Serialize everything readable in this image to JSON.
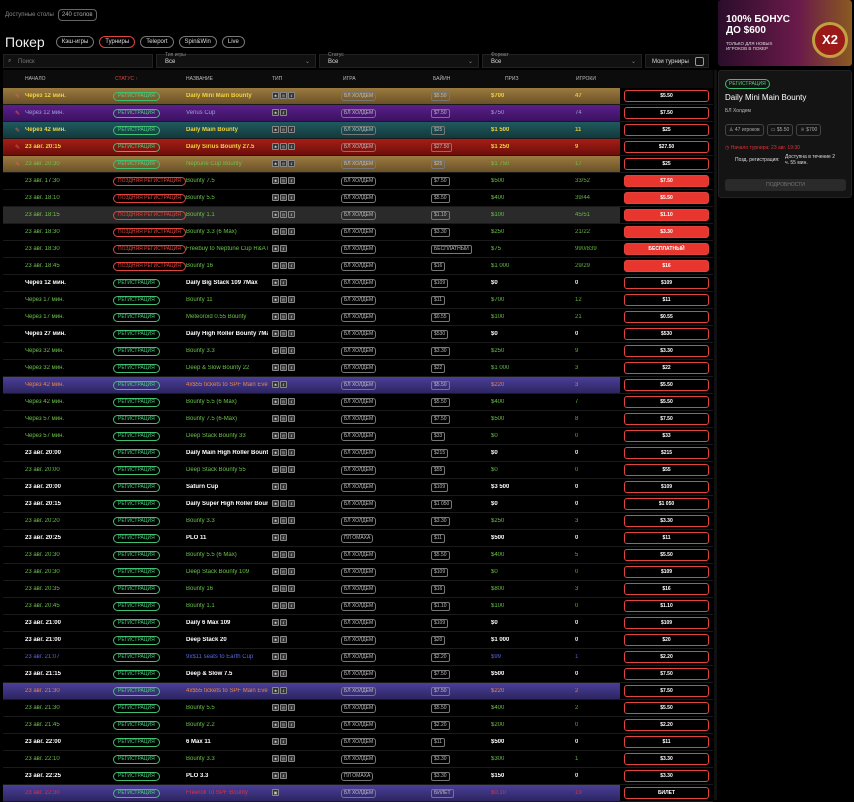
{
  "top": {
    "label": "Доступные столы",
    "count": "240 столов"
  },
  "header": {
    "title": "Покер",
    "tabs": [
      "Кэш-игры",
      "Турниры",
      "Teleport",
      "Spin&Win",
      "Live"
    ],
    "active_tab": 1
  },
  "filters": {
    "search_placeholder": "Поиск",
    "game_type": {
      "label": "Тип игры",
      "value": "Все"
    },
    "status": {
      "label": "Статус",
      "value": "Все"
    },
    "format": {
      "label": "Формат",
      "value": "Все"
    },
    "my_tournaments": "Мои турниры"
  },
  "columns": [
    "НАЧАЛО",
    "СТАТУС ↑",
    "НАЗВАНИЕ",
    "ТИП",
    "ИГРА",
    "БАЙИН",
    "ПРИЗ",
    "ИГРОКИ"
  ],
  "status_labels": {
    "reg": "РЕГИСТРАЦИЯ",
    "late": "ПОЗДНЯЯ РЕГИСТРАЦИЯ"
  },
  "colors": {
    "accent": "#e0443c",
    "registration": "#3ec070"
  },
  "rows": [
    [
      "Через 12 мин.",
      "reg",
      "Daily Mini Main Bounty",
      3,
      "БЛ ХОЛДЕМ",
      "$5.50",
      "$700",
      "47",
      "$5.50",
      "gold",
      "y"
    ],
    [
      "Через 12 мин.",
      "reg",
      "Venus Cup",
      2,
      "БЛ ХОЛДЕМ",
      "$7.50",
      "$750",
      "74",
      "$7.50",
      "purple",
      "v"
    ],
    [
      "Через 42 мин.",
      "reg",
      "Daily Main Bounty",
      3,
      "БЛ ХОЛДЕМ",
      "$25",
      "$1 500",
      "11",
      "$25",
      "teal",
      "y"
    ],
    [
      "23 авг. 20:15",
      "reg",
      "Daily Sirius Bounty 27.5",
      3,
      "БЛ ХОЛДЕМ",
      "$27.50",
      "$1 250",
      "9",
      "$27.50",
      "red",
      "y"
    ],
    [
      "23 авг. 20:30",
      "reg",
      "Neptune Cup Bounty",
      3,
      "БЛ ХОЛДЕМ",
      "$25",
      "$1 750",
      "17",
      "$25",
      "gold",
      "g"
    ],
    [
      "23 авг. 17:30",
      "late",
      "Bounty 7.5",
      3,
      "БЛ ХОЛДЕМ",
      "$7.50",
      "$500",
      "33/52",
      "$7.50",
      "",
      "g"
    ],
    [
      "23 авг. 18:10",
      "late",
      "Bounty 5.5",
      3,
      "БЛ ХОЛДЕМ",
      "$5.50",
      "$400",
      "39/44",
      "$5.50",
      "",
      "g"
    ],
    [
      "23 авг. 18:15",
      "late",
      "Bounty 1.1",
      3,
      "БЛ ХОЛДЕМ",
      "$1.10",
      "$100",
      "45/51",
      "$1.10",
      "grey",
      "g"
    ],
    [
      "23 авг. 18:30",
      "late",
      "Bounty 3.3 (6 Max)",
      3,
      "БЛ ХОЛДЕМ",
      "$3.30",
      "$250",
      "21/22",
      "$3.30",
      "",
      "g"
    ],
    [
      "23 авг. 18:30",
      "late",
      "Freebuy to Neptune Cup R&A I",
      2,
      "БЛ ХОЛДЕМ",
      "БЕСПЛАТНЫЙ",
      "$75",
      "990/839",
      "БЕСПЛАТНЫЙ",
      "",
      "g"
    ],
    [
      "23 авг. 18:45",
      "late",
      "Bounty 16",
      3,
      "БЛ ХОЛДЕМ",
      "$16",
      "$1 000",
      "29/29",
      "$16",
      "",
      "g"
    ],
    [
      "Через 12 мин.",
      "reg",
      "Daily Big Stack 109 7Max",
      2,
      "БЛ ХОЛДЕМ",
      "$109",
      "$0",
      "0",
      "$109",
      "",
      "w"
    ],
    [
      "Через 17 мин.",
      "reg",
      "Bounty 11",
      3,
      "БЛ ХОЛДЕМ",
      "$11",
      "$700",
      "12",
      "$11",
      "",
      "g"
    ],
    [
      "Через 17 мин.",
      "reg",
      "Meteoroid 0.55 Bounty",
      3,
      "БЛ ХОЛДЕМ",
      "$0.55",
      "$100",
      "21",
      "$0.55",
      "",
      "g"
    ],
    [
      "Через 27 мин.",
      "reg",
      "Daily High Roller Bounty 7Max",
      3,
      "БЛ ХОЛДЕМ",
      "$530",
      "$0",
      "0",
      "$530",
      "",
      "w"
    ],
    [
      "Через 32 мин.",
      "reg",
      "Bounty 3.3",
      3,
      "БЛ ХОЛДЕМ",
      "$3.30",
      "$250",
      "9",
      "$3.30",
      "",
      "g"
    ],
    [
      "Через 32 мин.",
      "reg",
      "Deep & Slow Bounty 22",
      3,
      "БЛ ХОЛДЕМ",
      "$22",
      "$1 000",
      "3",
      "$22",
      "",
      "g"
    ],
    [
      "Через 42 мин.",
      "reg",
      "4x$55 tickets to SPF Main Eve",
      2,
      "БЛ ХОЛДЕМ",
      "$5.50",
      "$220",
      "3",
      "$5.50",
      "violet",
      "o"
    ],
    [
      "Через 42 мин.",
      "reg",
      "Bounty 5.5 (6 Max)",
      3,
      "БЛ ХОЛДЕМ",
      "$5.50",
      "$400",
      "7",
      "$5.50",
      "",
      "g"
    ],
    [
      "Через 57 мин.",
      "reg",
      "Bounty 7.5 (6-Max)",
      3,
      "БЛ ХОЛДЕМ",
      "$7.50",
      "$500",
      "8",
      "$7.50",
      "",
      "g"
    ],
    [
      "Через 57 мин.",
      "reg",
      "Deep Stack Bounty 33",
      3,
      "БЛ ХОЛДЕМ",
      "$33",
      "$0",
      "0",
      "$33",
      "",
      "g"
    ],
    [
      "23 авг. 20:00",
      "reg",
      "Daily Main High Roller Bounty",
      3,
      "БЛ ХОЛДЕМ",
      "$215",
      "$0",
      "0",
      "$215",
      "",
      "w"
    ],
    [
      "23 авг. 20:00",
      "reg",
      "Deep Stack Bounty 55",
      3,
      "БЛ ХОЛДЕМ",
      "$55",
      "$0",
      "0",
      "$55",
      "",
      "g"
    ],
    [
      "23 авг. 20:00",
      "reg",
      "Saturn Cup",
      2,
      "БЛ ХОЛДЕМ",
      "$109",
      "$3 500",
      "0",
      "$109",
      "",
      "w"
    ],
    [
      "23 авг. 20:15",
      "reg",
      "Daily Super High Roller Bounty",
      3,
      "БЛ ХОЛДЕМ",
      "$1 050",
      "$0",
      "0",
      "$1 050",
      "",
      "w"
    ],
    [
      "23 авг. 20:20",
      "reg",
      "Bounty 3.3",
      3,
      "БЛ ХОЛДЕМ",
      "$3.30",
      "$250",
      "3",
      "$3.30",
      "",
      "g"
    ],
    [
      "23 авг. 20:25",
      "reg",
      "PLO 11",
      2,
      "ПЛ ОМАХА",
      "$11",
      "$500",
      "0",
      "$11",
      "",
      "w"
    ],
    [
      "23 авг. 20:30",
      "reg",
      "Bounty 5.5 (6 Max)",
      3,
      "БЛ ХОЛДЕМ",
      "$5.50",
      "$400",
      "5",
      "$5.50",
      "",
      "g"
    ],
    [
      "23 авг. 20:30",
      "reg",
      "Deep Stack Bounty 109",
      3,
      "БЛ ХОЛДЕМ",
      "$109",
      "$0",
      "0",
      "$109",
      "",
      "g"
    ],
    [
      "23 авг. 20:35",
      "reg",
      "Bounty 16",
      3,
      "БЛ ХОЛДЕМ",
      "$16",
      "$800",
      "3",
      "$16",
      "",
      "g"
    ],
    [
      "23 авг. 20:45",
      "reg",
      "Bounty 1.1",
      3,
      "БЛ ХОЛДЕМ",
      "$1.10",
      "$100",
      "0",
      "$1.10",
      "",
      "g"
    ],
    [
      "23 авг. 21:00",
      "reg",
      "Daily 6 Max 109",
      2,
      "БЛ ХОЛДЕМ",
      "$109",
      "$0",
      "0",
      "$109",
      "",
      "w"
    ],
    [
      "23 авг. 21:00",
      "reg",
      "Deep Stack 20",
      2,
      "БЛ ХОЛДЕМ",
      "$20",
      "$1 000",
      "0",
      "$20",
      "",
      "w"
    ],
    [
      "23 авг. 21:07",
      "reg",
      "9x$11 seats to Earth Cup",
      2,
      "БЛ ХОЛДЕМ",
      "$2.20",
      "$99",
      "1",
      "$2.20",
      "",
      "b"
    ],
    [
      "23 авг. 21:15",
      "reg",
      "Deep & Slow 7.5",
      2,
      "БЛ ХОЛДЕМ",
      "$7.50",
      "$500",
      "0",
      "$7.50",
      "",
      "w"
    ],
    [
      "23 авг. 21:30",
      "reg",
      "4x$55 tickets to SPF Main Eve",
      2,
      "БЛ ХОЛДЕМ",
      "$7.50",
      "$220",
      "2",
      "$7.50",
      "violet",
      "o"
    ],
    [
      "23 авг. 21:30",
      "reg",
      "Bounty 5.5",
      3,
      "БЛ ХОЛДЕМ",
      "$5.50",
      "$400",
      "2",
      "$5.50",
      "",
      "g"
    ],
    [
      "23 авг. 21:45",
      "reg",
      "Bounty 2.2",
      3,
      "БЛ ХОЛДЕМ",
      "$2.20",
      "$200",
      "0",
      "$2.20",
      "",
      "g"
    ],
    [
      "23 авг. 22:00",
      "reg",
      "6 Max 11",
      2,
      "БЛ ХОЛДЕМ",
      "$11",
      "$500",
      "0",
      "$11",
      "",
      "w"
    ],
    [
      "23 авг. 22:10",
      "reg",
      "Bounty 3.3",
      3,
      "БЛ ХОЛДЕМ",
      "$3.30",
      "$300",
      "1",
      "$3.30",
      "",
      "g"
    ],
    [
      "23 авг. 22:25",
      "reg",
      "PLO 3.3",
      2,
      "ПЛ ОМАХА",
      "$3.30",
      "$150",
      "0",
      "$3.30",
      "",
      "w"
    ],
    [
      "23 авг. 22:30",
      "reg",
      "Freeroll To SPF Bounty",
      1,
      "БЛ ХОЛДЕМ",
      "БИЛЕТ",
      "$0.10",
      "19",
      "БИЛЕТ",
      "violet",
      "r"
    ]
  ],
  "banner": {
    "title": "100% БОНУС ДО $600",
    "subtitle": "ТОЛЬКО ДЛЯ НОВЫХ ИГРОКОВ В ПОКЕР",
    "coin": "X2"
  },
  "details": {
    "status": "РЕГИСТРАЦИЯ",
    "title": "Daily Mini Main Bounty",
    "game": "БЛ Холдем",
    "players": "47 игроков",
    "buyin": "$5.50",
    "prize": "$700",
    "start": "Начало турнира: 23 авг. 19:30",
    "late_label": "Позд. регистрация:",
    "late_value": "Доступна в течение 2 ч. 55 мин.",
    "details_button": "ПОДРОБНОСТИ"
  }
}
